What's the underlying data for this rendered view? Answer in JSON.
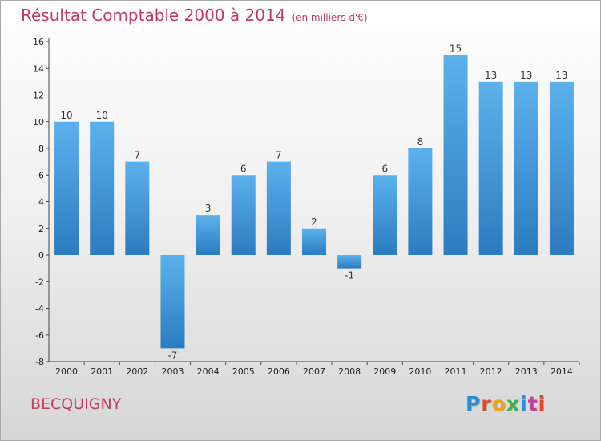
{
  "header": {
    "title": "Résultat Comptable 2000 à 2014",
    "subtitle": "(en milliers d'€)"
  },
  "footer": {
    "commune": "BECQUIGNY",
    "logo_text": "Proxiti",
    "logo_colors": [
      "#2a8ed6",
      "#e9461f",
      "#f2a11b",
      "#3cb34a",
      "#2a8ed6",
      "#c83fa0",
      "#e9461f"
    ]
  },
  "chart_data": {
    "type": "bar",
    "categories": [
      "2000",
      "2001",
      "2002",
      "2003",
      "2004",
      "2005",
      "2006",
      "2007",
      "2008",
      "2009",
      "2010",
      "2011",
      "2012",
      "2013",
      "2014"
    ],
    "values": [
      10,
      10,
      7,
      -7,
      3,
      6,
      7,
      2,
      -1,
      6,
      8,
      15,
      13,
      13,
      13
    ],
    "data_labels": [
      "10",
      "10",
      "7",
      "-7",
      "3",
      "6",
      "7",
      "2",
      "-1",
      "6",
      "8",
      "15",
      "13",
      "13",
      "13"
    ],
    "y_ticks": [
      -8,
      -6,
      -4,
      -2,
      0,
      2,
      4,
      6,
      8,
      10,
      12,
      14,
      16
    ],
    "ylim": [
      -8,
      16
    ],
    "bar_color": "#3d92d6",
    "grid": false
  }
}
